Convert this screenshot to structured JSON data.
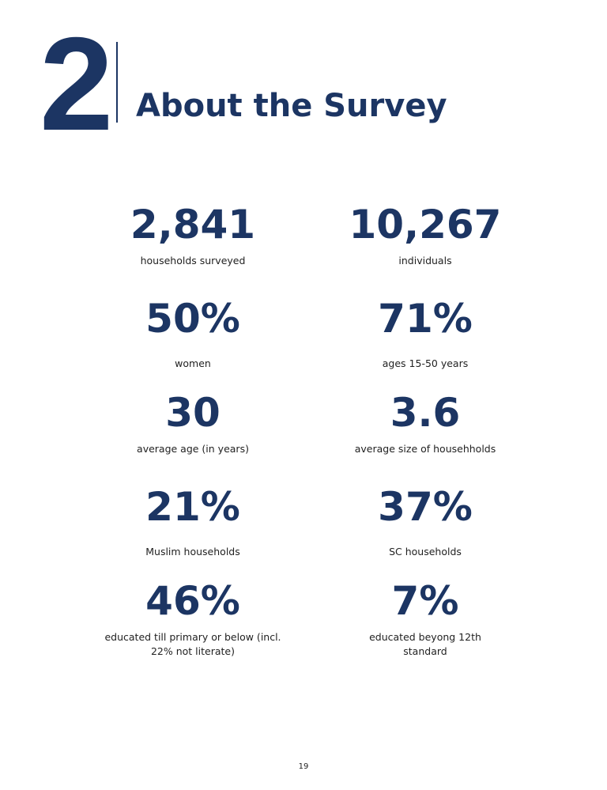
{
  "chapter": {
    "number": "2",
    "title": "About the Survey"
  },
  "stats": [
    {
      "value": "2,841",
      "label": "households surveyed"
    },
    {
      "value": "10,267",
      "label": "individuals"
    },
    {
      "value": "50%",
      "label": "women"
    },
    {
      "value": "71%",
      "label": "ages 15-50 years"
    },
    {
      "value": "30",
      "label": "average age (in years)"
    },
    {
      "value": "3.6",
      "label": "average size of househholds"
    },
    {
      "value": "21%",
      "label": "Muslim households"
    },
    {
      "value": "37%",
      "label": "SC households"
    },
    {
      "value": "46%",
      "label": "educated till primary or below (incl. 22% not literate)"
    },
    {
      "value": "7%",
      "label": "educated beyong 12th standard"
    }
  ],
  "page_number": "19"
}
